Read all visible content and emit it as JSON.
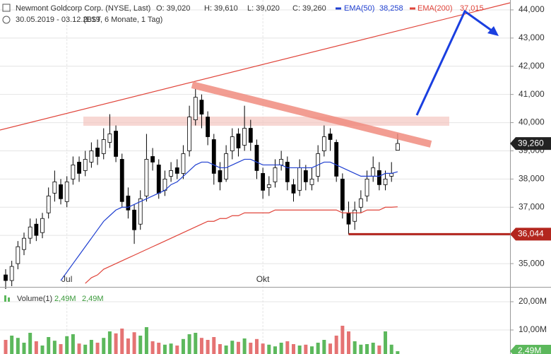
{
  "chart_data": [
    {
      "type": "candlestick",
      "title": "Newmont Goldcorp Corp. (NYSE, Last)",
      "ohlc_labels": [
        "O: 39,020",
        "H: 39,610",
        "L: 39,020",
        "C: 39,260"
      ],
      "subtitle": "30.05.2019 - 03.12.2019",
      "note": "(EST, 6 Monate, 1 Tag)",
      "categories": [
        null,
        null,
        null,
        null,
        null,
        null,
        null,
        null,
        null,
        null,
        "Jul",
        null,
        null,
        null,
        null,
        null,
        null,
        null,
        null,
        null,
        null,
        null,
        null,
        null,
        null,
        null,
        null,
        null,
        null,
        null,
        null,
        null,
        null,
        null,
        null,
        null,
        null,
        null,
        null,
        null,
        null,
        null,
        "Okt",
        null,
        null,
        null,
        null,
        null,
        null,
        null,
        null,
        null,
        null,
        null,
        null,
        null,
        null,
        null,
        null,
        null,
        null,
        null,
        null,
        null,
        null
      ],
      "open": [
        34.6,
        34.4,
        35.0,
        35.5,
        35.9,
        36.4,
        36.1,
        36.8,
        37.5,
        37.8,
        37.2,
        38.0,
        38.6,
        38.3,
        38.6,
        39.1,
        38.9,
        39.3,
        39.7,
        38.7,
        37.4,
        36.9,
        36.4,
        37.4,
        38.8,
        38.5,
        37.6,
        38.1,
        38.4,
        38.2,
        39.0,
        40.1,
        40.8,
        40.2,
        39.4,
        38.3,
        38.0,
        39.0,
        39.6,
        39.2,
        39.8,
        39.2,
        38.2,
        37.7,
        37.9,
        38.5,
        38.6,
        37.8,
        37.6,
        38.3,
        37.8,
        38.1,
        39.0,
        39.6,
        39.3,
        38.0,
        36.8,
        36.5,
        37.0,
        37.4,
        38.1,
        38.3,
        37.8,
        38.1,
        39.02
      ],
      "high": [
        34.8,
        35.1,
        35.8,
        36.1,
        36.6,
        36.6,
        36.8,
        37.7,
        38.3,
        38.0,
        38.1,
        38.8,
        38.8,
        39.0,
        39.3,
        39.4,
        39.8,
        40.3,
        39.9,
        38.9,
        37.7,
        37.1,
        37.6,
        39.6,
        39.1,
        38.7,
        38.3,
        38.6,
        38.7,
        39.2,
        40.6,
        41.2,
        41.0,
        40.4,
        39.6,
        38.6,
        39.2,
        39.8,
        39.8,
        40.6,
        40.1,
        39.4,
        38.4,
        38.1,
        38.7,
        39.0,
        38.8,
        38.0,
        38.7,
        38.5,
        38.4,
        39.2,
        39.9,
        39.8,
        39.4,
        38.2,
        37.2,
        37.2,
        37.6,
        38.3,
        38.8,
        38.6,
        38.3,
        38.6,
        39.61
      ],
      "low": [
        34.1,
        34.2,
        34.8,
        35.3,
        35.7,
        35.8,
        35.9,
        36.6,
        37.2,
        37.1,
        37.0,
        37.8,
        37.9,
        38.1,
        38.4,
        38.5,
        38.7,
        39.1,
        38.6,
        37.0,
        36.6,
        35.7,
        36.2,
        37.2,
        38.3,
        37.3,
        37.4,
        37.9,
        38.0,
        38.0,
        38.8,
        39.9,
        39.8,
        39.2,
        37.8,
        37.6,
        37.9,
        38.7,
        38.8,
        39.0,
        39.0,
        38.0,
        37.3,
        37.4,
        37.7,
        38.3,
        37.6,
        37.2,
        37.4,
        37.6,
        37.6,
        37.9,
        38.8,
        39.0,
        37.9,
        36.6,
        36.04,
        36.2,
        36.8,
        37.2,
        37.9,
        37.6,
        37.6,
        37.9,
        39.02
      ],
      "close": [
        34.4,
        34.9,
        35.6,
        35.9,
        36.3,
        36.0,
        36.6,
        37.4,
        37.9,
        37.3,
        37.9,
        38.5,
        38.2,
        38.7,
        39.0,
        38.8,
        39.4,
        39.6,
        38.8,
        37.2,
        36.9,
        36.2,
        37.3,
        38.7,
        38.6,
        37.5,
        38.0,
        38.3,
        38.2,
        38.9,
        40.2,
        40.9,
        40.3,
        39.5,
        38.2,
        37.9,
        38.9,
        39.5,
        39.1,
        39.8,
        39.3,
        38.3,
        37.6,
        37.8,
        38.4,
        38.7,
        37.9,
        37.5,
        38.4,
        37.9,
        38.0,
        38.9,
        39.5,
        39.4,
        38.1,
        36.9,
        36.4,
        36.9,
        37.3,
        38.0,
        38.4,
        37.8,
        38.0,
        38.2,
        39.26
      ],
      "up_color": "#ffffff",
      "down_color": "#000000",
      "series": [
        {
          "name": "EMA(50)",
          "color": "#1f3fd0",
          "last_label": "38,258",
          "values": [
            null,
            null,
            null,
            null,
            null,
            null,
            null,
            null,
            null,
            34.4,
            34.7,
            35.0,
            35.3,
            35.6,
            35.9,
            36.2,
            36.5,
            36.7,
            36.9,
            37.0,
            37.0,
            37.1,
            37.2,
            37.3,
            37.4,
            37.5,
            37.6,
            37.8,
            37.9,
            38.1,
            38.3,
            38.5,
            38.6,
            38.6,
            38.5,
            38.4,
            38.4,
            38.5,
            38.6,
            38.7,
            38.7,
            38.6,
            38.5,
            38.5,
            38.5,
            38.5,
            38.4,
            38.4,
            38.4,
            38.4,
            38.4,
            38.5,
            38.6,
            38.6,
            38.5,
            38.4,
            38.3,
            38.2,
            38.1,
            38.1,
            38.1,
            38.1,
            38.2,
            38.2,
            38.258
          ]
        },
        {
          "name": "EMA(200)",
          "color": "#e0443a",
          "last_label": "37,015",
          "values": [
            null,
            null,
            null,
            null,
            null,
            null,
            null,
            null,
            null,
            null,
            null,
            null,
            null,
            34.3,
            34.5,
            34.6,
            34.8,
            34.9,
            35.0,
            35.1,
            35.2,
            35.3,
            35.4,
            35.5,
            35.6,
            35.7,
            35.8,
            35.9,
            36.0,
            36.1,
            36.2,
            36.3,
            36.4,
            36.5,
            36.5,
            36.6,
            36.6,
            36.7,
            36.7,
            36.8,
            36.8,
            36.8,
            36.8,
            36.8,
            36.9,
            36.9,
            36.9,
            36.9,
            36.9,
            36.9,
            36.9,
            36.9,
            36.9,
            36.9,
            36.9,
            36.8,
            36.8,
            36.8,
            36.8,
            36.9,
            36.9,
            36.9,
            37.0,
            37.0,
            37.015
          ]
        }
      ],
      "ylim": [
        34.2,
        44.35
      ],
      "yticks": [
        {
          "value": 35,
          "label": "35,000"
        },
        {
          "value": 36,
          "label": "36,000"
        },
        {
          "value": 37,
          "label": "37,000"
        },
        {
          "value": 38,
          "label": "38,000"
        },
        {
          "value": 39,
          "label": "39,000"
        },
        {
          "value": 40,
          "label": "40,000"
        },
        {
          "value": 41,
          "label": "41,000"
        },
        {
          "value": 42,
          "label": "42,000"
        },
        {
          "value": 43,
          "label": "43,000"
        },
        {
          "value": 44,
          "label": "44,000"
        }
      ],
      "grid": true,
      "last_price": {
        "value": 39.26,
        "label": "39,260"
      },
      "support": {
        "value": 36.044,
        "label": "36,044",
        "color": "#b3261e"
      }
    },
    {
      "type": "bar",
      "series": [
        {
          "name": "Volume(1)",
          "up_color": "#5cb85c",
          "down_color": "#e57373",
          "values": [
            6.5,
            8.0,
            7.2,
            5.5,
            9.0,
            6.0,
            4.5,
            7.5,
            6.2,
            5.0,
            7.8,
            8.5,
            5.2,
            4.8,
            6.5,
            5.5,
            7.2,
            9.5,
            8.8,
            10.5,
            7.0,
            9.2,
            8.0,
            11.0,
            6.0,
            5.5,
            4.8,
            5.2,
            4.5,
            6.8,
            8.5,
            9.0,
            7.2,
            6.5,
            7.5,
            5.0,
            4.5,
            6.2,
            5.8,
            7.0,
            5.5,
            6.8,
            5.2,
            4.8,
            4.2,
            5.5,
            6.0,
            5.0,
            4.5,
            4.8,
            4.2,
            5.5,
            6.5,
            5.2,
            8.0,
            11.5,
            9.5,
            6.0,
            4.8,
            5.0,
            5.5,
            4.5,
            9.5,
            4.8,
            2.49
          ]
        }
      ],
      "last_value": {
        "value": 2.49,
        "label": "2,49M"
      },
      "ylim": [
        1.5,
        24.75
      ],
      "yticks": [
        {
          "value": 10,
          "label": "10,00M"
        },
        {
          "value": 20,
          "label": "20,00M"
        }
      ],
      "grid": true
    }
  ]
}
